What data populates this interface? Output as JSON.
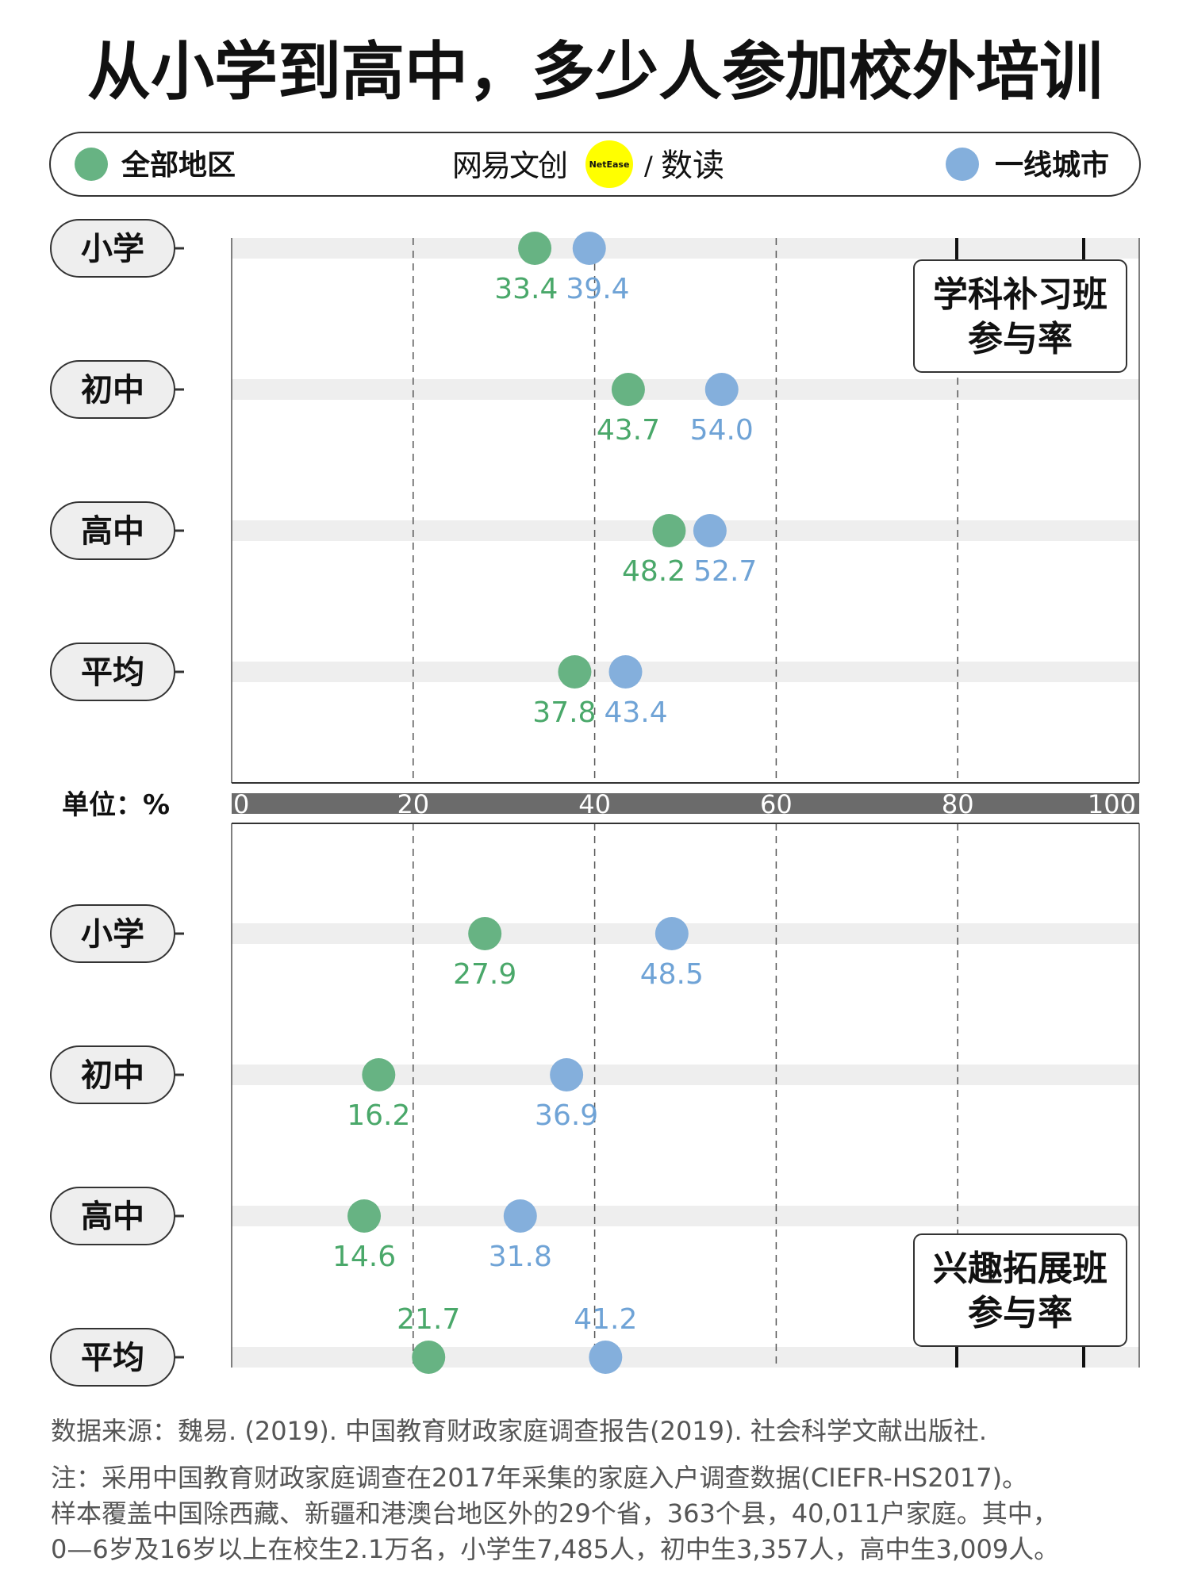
{
  "title": "从小学到高中，多少人参加校外培训",
  "legend": {
    "all_regions": "全部地区",
    "tier1": "一线城市",
    "logo_text": "网易文创",
    "logo_badge": "NetEase",
    "logo_sep": "/",
    "logo_sub": "数读"
  },
  "colors": {
    "all_regions": "#67b383",
    "tier1": "#84afdc",
    "all_label": "#4aa86a",
    "tier1_label": "#6fa3d6",
    "axis_bar": "#6b6b6b",
    "band": "#eeeeee",
    "logo_yellow": "#ffff00"
  },
  "unit_label": "单位：%",
  "chart_data": [
    {
      "type": "dot",
      "title": "学科补习班参与率",
      "title_lines": [
        "学科补习班",
        "参与率"
      ],
      "categories": [
        "小学",
        "初中",
        "高中",
        "平均"
      ],
      "series": [
        {
          "name": "全部地区",
          "values": [
            33.4,
            43.7,
            48.2,
            37.8
          ]
        },
        {
          "name": "一线城市",
          "values": [
            39.4,
            54.0,
            52.7,
            43.4
          ]
        }
      ],
      "xlim": [
        0,
        100
      ],
      "xticks": [
        "0",
        "20",
        "40",
        "60",
        "80",
        "100"
      ],
      "grid": true
    },
    {
      "type": "dot",
      "title": "兴趣拓展班参与率",
      "title_lines": [
        "兴趣拓展班",
        "参与率"
      ],
      "categories": [
        "小学",
        "初中",
        "高中",
        "平均"
      ],
      "series": [
        {
          "name": "全部地区",
          "values": [
            27.9,
            16.2,
            14.6,
            21.7
          ]
        },
        {
          "name": "一线城市",
          "values": [
            48.5,
            36.9,
            31.8,
            41.2
          ]
        }
      ],
      "xlim": [
        0,
        100
      ],
      "grid": true
    }
  ],
  "footer": {
    "source": "数据来源：魏易. (2019). 中国教育财政家庭调查报告(2019). 社会科学文献出版社.",
    "note_lines": [
      "注：采用中国教育财政家庭调查在2017年采集的家庭入户调查数据(CIEFR-HS2017)。",
      "样本覆盖中国除西藏、新疆和港澳台地区外的29个省，363个县，40,011户家庭。其中，",
      "0—6岁及16岁以上在校生2.1万名，小学生7,485人，初中生3,357人，高中生3,009人。"
    ]
  }
}
